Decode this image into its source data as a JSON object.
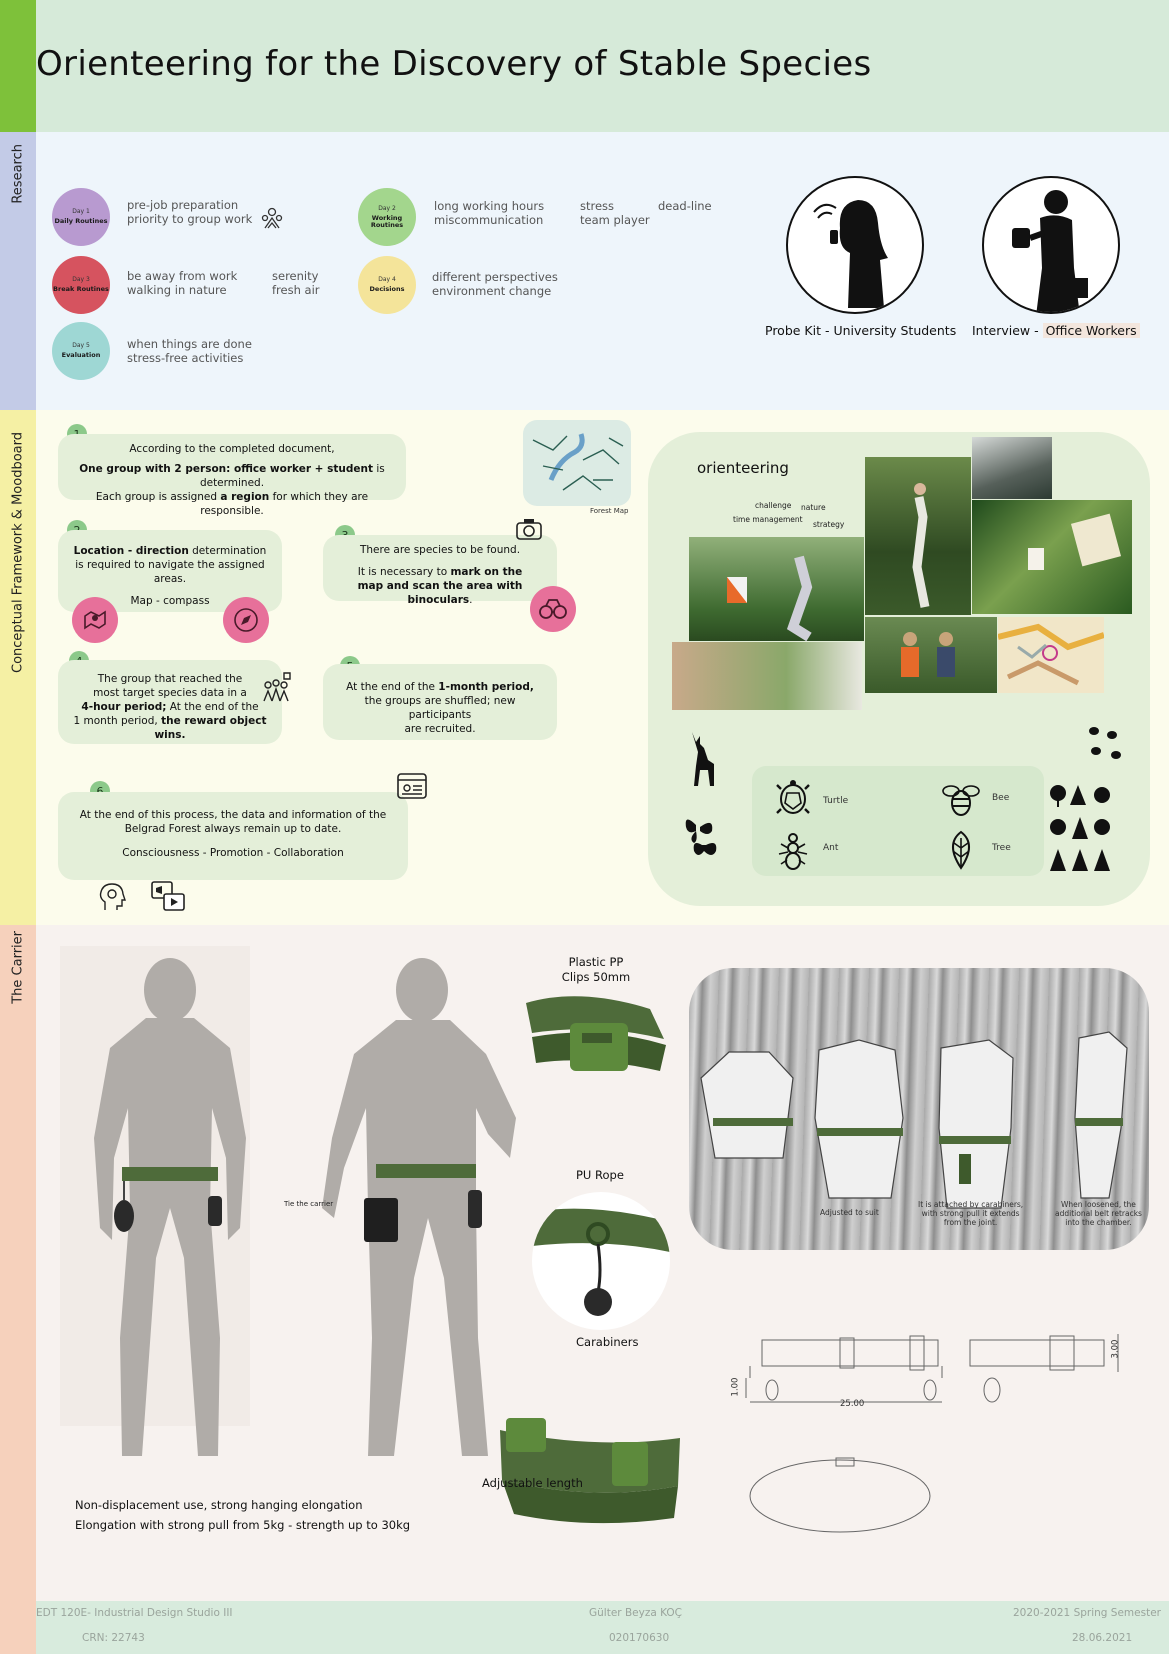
{
  "header": {
    "title": "Orienteering for the Discovery of Stable Species"
  },
  "sections": {
    "research": "Research",
    "concept": "Conceptual Framework & Moodboard",
    "carrier": "The Carrier"
  },
  "colors": {
    "header_bg": "#d6ead9",
    "accent_green": "#7ec13a",
    "research_bg": "#eef5fb",
    "concept_bg": "#fcfcec",
    "carrier_bg": "#f7f2ef",
    "belt": "#4e6b3a",
    "pink": "#e7709a"
  },
  "research": {
    "days": [
      {
        "day": "Day 1",
        "name": "Daily Routines",
        "color": "#b89ad0",
        "texts": [
          "pre-job preparation",
          "priority to group work"
        ],
        "icon": "group-icon"
      },
      {
        "day": "Day 3",
        "name": "Break Routines",
        "color": "#d6535f",
        "texts": [
          "be away from work",
          "walking in nature"
        ],
        "extra": [
          "serenity",
          "fresh air"
        ]
      },
      {
        "day": "Day 5",
        "name": "Evaluation",
        "color": "#9ed7d4",
        "texts": [
          "when things are done",
          "stress-free activities"
        ]
      },
      {
        "day": "Day 2",
        "name": "Working Routines",
        "color": "#a3d68d",
        "texts": [
          "long working hours",
          "miscommunication"
        ],
        "extra": [
          "stress",
          "team player"
        ],
        "extra2": "dead-line"
      },
      {
        "day": "Day 4",
        "name": "Decisions",
        "color": "#f4e49a",
        "texts": [
          "different perspectives",
          "environment change"
        ]
      }
    ],
    "personas": [
      {
        "caption": "Probe Kit - University Students"
      },
      {
        "caption_a": "Interview - ",
        "caption_b": "Office Workers"
      }
    ]
  },
  "concept": {
    "steps": [
      {
        "n": "1",
        "l1": "According to the completed document,",
        "l2a": "One group with 2 person: office worker + student",
        "l2b": " is determined.",
        "l3a": "Each group is assigned ",
        "l3b": "a region",
        "l3c": " for which they are responsible."
      },
      {
        "n": "2",
        "l1a": "Location - direction",
        "l1b": " determination",
        "l2": "is required to navigate the assigned areas.",
        "l3": "Map - compass"
      },
      {
        "n": "3",
        "l1": "There are species to be found.",
        "l2a": "It is necessary to ",
        "l2b": "mark on the",
        "l3a": "map and scan the area with binoculars",
        "l3b": "."
      },
      {
        "n": "4",
        "l1": "The group that reached the",
        "l2": "most target species data in a",
        "l3a": "4-hour period;",
        "l3b": " At the end of the",
        "l4a": "1 month period, ",
        "l4b": "the reward object wins."
      },
      {
        "n": "5",
        "l1a": "At the end of the ",
        "l1b": "1-month period,",
        "l2": "the groups are shuffled; new participants",
        "l3": "are recruited."
      },
      {
        "n": "6",
        "l1": "At the end of this process, the data and information of the",
        "l2": "Belgrad Forest always remain up to date.",
        "l3": "Consciousness - Promotion - Collaboration"
      }
    ],
    "map_label": "Forest Map",
    "moodboard": {
      "title": "orienteering",
      "words": [
        "challenge",
        "nature",
        "time management",
        "strategy"
      ],
      "species": [
        "Turtle",
        "Bee",
        "Ant",
        "Tree"
      ]
    }
  },
  "carrier": {
    "tie_label": "Tie the carrier",
    "clips_label_1": "Plastic PP",
    "clips_label_2": "Clips 50mm",
    "rope_label": "PU Rope",
    "carabiners_label": "Carabiners",
    "adjustable_label": "Adjustable length",
    "desc1": "Non-displacement use, strong hanging elongation",
    "desc2": "Elongation with strong pull from 5kg - strength up to 30kg",
    "steps": [
      {
        "l1": "Adjusted to suit"
      },
      {
        "l1": "It is attached by carabiners,",
        "l2": "with strong pull it extends",
        "l3": "from the joint."
      },
      {
        "l1": "When loosened, the",
        "l2": "additional belt retracks",
        "l3": "into the chamber."
      }
    ],
    "dims": {
      "length": "25.00",
      "height": "3.00",
      "small": "1.00"
    }
  },
  "footer": {
    "course": "EDT 120E- Industrial Design Studio III",
    "crn": "CRN: 22743",
    "author": "Gülter Beyza KOÇ",
    "id": "020170630",
    "semester": "2020-2021 Spring Semester",
    "date": "28.06.2021"
  }
}
